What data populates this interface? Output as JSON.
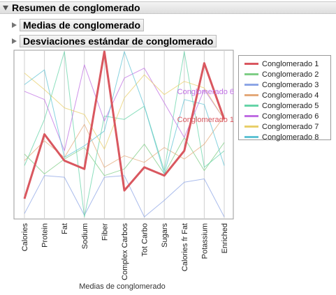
{
  "headers": {
    "main": "Resumen de conglomerado",
    "means": "Medias de conglomerado",
    "stddev": "Desviaciones estándar de conglomerado"
  },
  "chart_data": {
    "type": "line",
    "xlabel": "Medias de conglomerado",
    "categories": [
      "Calories",
      "Protein",
      "Fat",
      "Sodium",
      "Fiber",
      "Complex Carbos",
      "Tot Carbo",
      "Sugars",
      "Calories fr Fat",
      "Potassium",
      "Enriched"
    ],
    "ylim": [
      0,
      1
    ],
    "grid": false,
    "legend": "right",
    "series": [
      {
        "name": "Conglomerado 1",
        "color": "#d9575f",
        "values": [
          0.11,
          0.5,
          0.34,
          0.29,
          1.0,
          0.16,
          0.3,
          0.25,
          0.4,
          0.93,
          0.59
        ],
        "emphasized": true,
        "label": "Conglomerado 1"
      },
      {
        "name": "Conglomerado 2",
        "color": "#7fce86",
        "values": [
          0.38,
          0.26,
          0.35,
          0.42,
          0.25,
          0.29,
          0.44,
          0.26,
          0.48,
          0.28,
          0.45
        ]
      },
      {
        "name": "Conglomerado 3",
        "color": "#8da6e6",
        "values": [
          0.02,
          0.25,
          0.24,
          0.01,
          0.24,
          0.25,
          0.0,
          0.1,
          0.21,
          0.23,
          0.0
        ]
      },
      {
        "name": "Conglomerado 4",
        "color": "#e4a97a",
        "values": [
          0.34,
          0.46,
          0.36,
          0.56,
          0.3,
          0.37,
          0.33,
          0.42,
          0.35,
          0.44,
          0.61
        ]
      },
      {
        "name": "Conglomerado 5",
        "color": "#66d4a8",
        "values": [
          0.31,
          0.59,
          1.0,
          0.0,
          0.61,
          0.59,
          0.67,
          0.28,
          1.0,
          0.3,
          0.4
        ]
      },
      {
        "name": "Conglomerado 6",
        "color": "#bf6ee3",
        "values": [
          0.76,
          0.71,
          0.4,
          0.92,
          0.58,
          0.84,
          0.9,
          0.69,
          0.48,
          0.77,
          0.59
        ],
        "label": "Conglomerado 6"
      },
      {
        "name": "Conglomerado 7",
        "color": "#e8cf6a",
        "values": [
          0.87,
          0.77,
          0.66,
          0.62,
          0.41,
          0.72,
          0.86,
          0.74,
          0.82,
          0.78,
          0.59
        ]
      },
      {
        "name": "Conglomerado 8",
        "color": "#5fc3d4",
        "values": [
          0.8,
          0.89,
          0.36,
          0.43,
          0.52,
          1.0,
          0.67,
          0.26,
          0.71,
          0.68,
          0.31
        ]
      }
    ]
  }
}
